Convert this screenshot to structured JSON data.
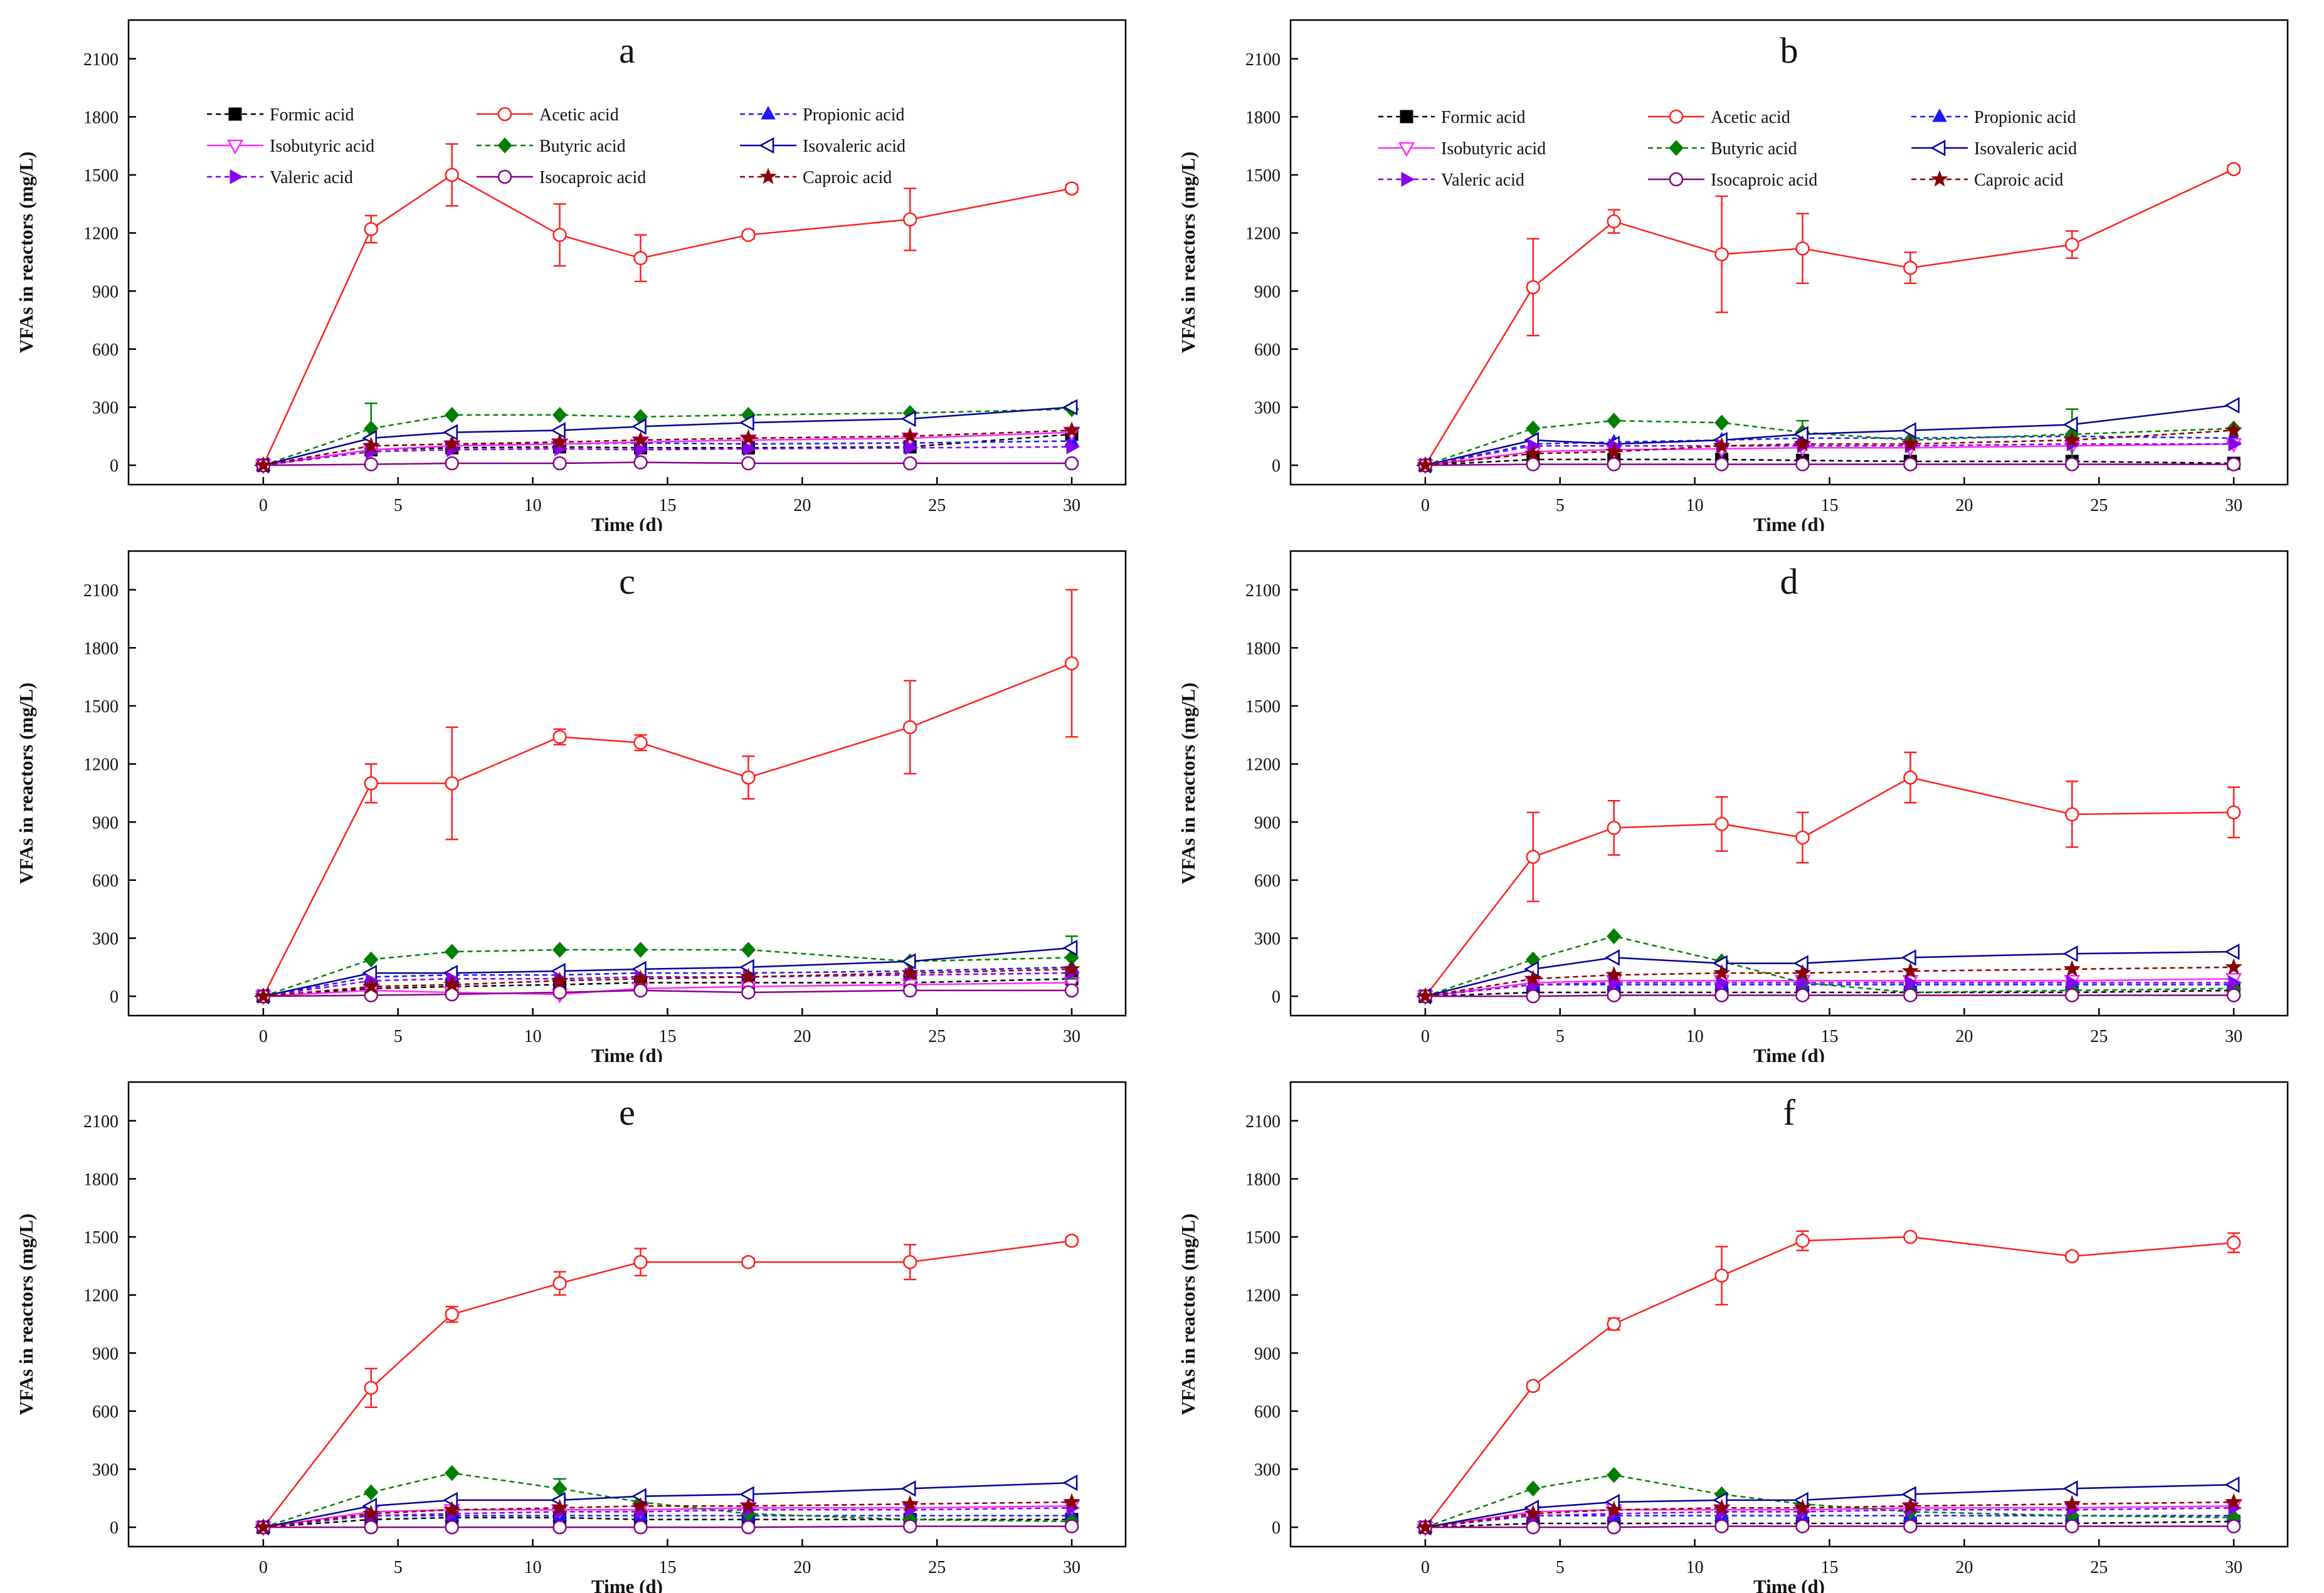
{
  "figure": {
    "panel_count": 6
  },
  "legend": [
    {
      "name": "Formic acid",
      "color": "#000000",
      "marker": "square-filled",
      "dash": true
    },
    {
      "name": "Acetic acid",
      "color": "#ff2020",
      "marker": "circle-open",
      "dash": false
    },
    {
      "name": "Propionic acid",
      "color": "#1a1aff",
      "marker": "triangle-up-filled",
      "dash": true
    },
    {
      "name": "Isobutyric acid",
      "color": "#ff2bff",
      "marker": "triangle-down-open",
      "dash": false
    },
    {
      "name": "Butyric acid",
      "color": "#008000",
      "marker": "diamond-filled",
      "dash": true
    },
    {
      "name": "Isovaleric acid",
      "color": "#000099",
      "marker": "triangle-left-open",
      "dash": false
    },
    {
      "name": "Valeric acid",
      "color": "#8800ee",
      "marker": "triangle-right-filled",
      "dash": true
    },
    {
      "name": "Isocaproic acid",
      "color": "#880088",
      "marker": "circle-open",
      "dash": false
    },
    {
      "name": "Caproic acid",
      "color": "#880000",
      "marker": "star-filled",
      "dash": true
    }
  ],
  "chart_data": [
    {
      "type": "line",
      "label": "a",
      "xlabel": "Time (d)",
      "ylabel": "VFAs in reactors (mg/L)",
      "x": [
        0,
        4,
        7,
        11,
        14,
        18,
        24,
        30
      ],
      "xlim": [
        -5,
        32
      ],
      "ylim": [
        -100,
        2300
      ],
      "xticks": [
        0,
        5,
        10,
        15,
        20,
        25,
        30
      ],
      "yticks": [
        0,
        300,
        600,
        900,
        1200,
        1500,
        1800,
        2100
      ],
      "series": [
        {
          "name": "Formic acid",
          "values": [
            0,
            80,
            90,
            95,
            90,
            90,
            95,
            160
          ]
        },
        {
          "name": "Acetic acid",
          "values": [
            0,
            1220,
            1500,
            1190,
            1070,
            1190,
            1270,
            1430
          ],
          "errors": [
            0,
            70,
            160,
            160,
            120,
            20,
            160,
            20
          ]
        },
        {
          "name": "Propionic acid",
          "values": [
            0,
            100,
            110,
            110,
            115,
            110,
            115,
            125
          ]
        },
        {
          "name": "Isobutyric acid",
          "values": [
            0,
            80,
            100,
            110,
            120,
            130,
            140,
            170
          ]
        },
        {
          "name": "Butyric acid",
          "values": [
            0,
            190,
            260,
            260,
            250,
            260,
            270,
            290
          ],
          "errors": [
            0,
            130,
            0,
            0,
            0,
            0,
            0,
            0
          ]
        },
        {
          "name": "Isovaleric acid",
          "values": [
            0,
            140,
            170,
            180,
            200,
            220,
            240,
            300
          ]
        },
        {
          "name": "Valeric acid",
          "values": [
            0,
            70,
            80,
            85,
            80,
            85,
            90,
            95
          ]
        },
        {
          "name": "Isocaproic acid",
          "values": [
            0,
            5,
            10,
            10,
            15,
            10,
            10,
            10
          ]
        },
        {
          "name": "Caproic acid",
          "values": [
            0,
            100,
            110,
            120,
            130,
            140,
            150,
            180
          ]
        }
      ]
    },
    {
      "type": "line",
      "label": "b",
      "xlabel": "Time (d)",
      "ylabel": "VFAs in reactors (mg/L)",
      "x": [
        0,
        4,
        7,
        11,
        14,
        18,
        24,
        30
      ],
      "xlim": [
        -5,
        32
      ],
      "ylim": [
        -100,
        2300
      ],
      "xticks": [
        0,
        5,
        10,
        15,
        20,
        25,
        30
      ],
      "yticks": [
        0,
        300,
        600,
        900,
        1200,
        1500,
        1800,
        2100
      ],
      "series": [
        {
          "name": "Formic acid",
          "values": [
            0,
            30,
            30,
            30,
            25,
            20,
            20,
            10
          ]
        },
        {
          "name": "Acetic acid",
          "values": [
            0,
            920,
            1260,
            1090,
            1120,
            1020,
            1140,
            1530
          ],
          "errors": [
            0,
            250,
            60,
            300,
            180,
            80,
            70,
            20
          ]
        },
        {
          "name": "Propionic acid",
          "values": [
            0,
            110,
            120,
            130,
            140,
            140,
            150,
            140
          ]
        },
        {
          "name": "Isobutyric acid",
          "values": [
            0,
            70,
            80,
            85,
            90,
            90,
            100,
            110
          ]
        },
        {
          "name": "Butyric acid",
          "values": [
            0,
            190,
            230,
            220,
            170,
            130,
            160,
            190
          ],
          "errors": [
            0,
            0,
            0,
            0,
            60,
            0,
            130,
            0
          ]
        },
        {
          "name": "Isovaleric acid",
          "values": [
            0,
            130,
            110,
            130,
            160,
            180,
            210,
            310
          ]
        },
        {
          "name": "Valeric acid",
          "values": [
            0,
            100,
            100,
            100,
            100,
            100,
            110,
            110
          ]
        },
        {
          "name": "Isocaproic acid",
          "values": [
            0,
            5,
            5,
            5,
            5,
            5,
            5,
            5
          ]
        },
        {
          "name": "Caproic acid",
          "values": [
            0,
            60,
            70,
            100,
            110,
            110,
            130,
            180
          ]
        }
      ]
    },
    {
      "type": "line",
      "label": "c",
      "xlabel": "Time (d)",
      "ylabel": "VFAs in reactors (mg/L)",
      "x": [
        0,
        4,
        7,
        11,
        14,
        18,
        24,
        30
      ],
      "xlim": [
        -5,
        32
      ],
      "ylim": [
        -100,
        2300
      ],
      "xticks": [
        0,
        5,
        10,
        15,
        20,
        25,
        30
      ],
      "yticks": [
        0,
        300,
        600,
        900,
        1200,
        1500,
        1800,
        2100
      ],
      "series": [
        {
          "name": "Formic acid",
          "values": [
            0,
            40,
            50,
            60,
            70,
            70,
            70,
            90
          ]
        },
        {
          "name": "Acetic acid",
          "values": [
            0,
            1100,
            1100,
            1340,
            1310,
            1130,
            1390,
            1720
          ],
          "errors": [
            0,
            100,
            290,
            40,
            40,
            110,
            240,
            380
          ]
        },
        {
          "name": "Propionic acid",
          "values": [
            0,
            100,
            110,
            110,
            120,
            120,
            130,
            150
          ]
        },
        {
          "name": "Isobutyric acid",
          "values": [
            0,
            30,
            20,
            10,
            40,
            50,
            60,
            70
          ]
        },
        {
          "name": "Butyric acid",
          "values": [
            0,
            190,
            230,
            240,
            240,
            240,
            180,
            200
          ],
          "errors": [
            0,
            0,
            0,
            0,
            0,
            0,
            0,
            110
          ]
        },
        {
          "name": "Isovaleric acid",
          "values": [
            0,
            120,
            120,
            130,
            140,
            150,
            180,
            250
          ]
        },
        {
          "name": "Valeric acid",
          "values": [
            0,
            80,
            90,
            90,
            100,
            100,
            110,
            120
          ]
        },
        {
          "name": "Isocaproic acid",
          "values": [
            0,
            5,
            10,
            20,
            30,
            20,
            30,
            30
          ]
        },
        {
          "name": "Caproic acid",
          "values": [
            0,
            50,
            60,
            80,
            90,
            100,
            120,
            140
          ]
        }
      ]
    },
    {
      "type": "line",
      "label": "d",
      "xlabel": "Time (d)",
      "ylabel": "VFAs in reactors (mg/L)",
      "x": [
        0,
        4,
        7,
        11,
        14,
        18,
        24,
        30
      ],
      "xlim": [
        -5,
        32
      ],
      "ylim": [
        -100,
        2300
      ],
      "xticks": [
        0,
        5,
        10,
        15,
        20,
        25,
        30
      ],
      "yticks": [
        0,
        300,
        600,
        900,
        1200,
        1500,
        1800,
        2100
      ],
      "series": [
        {
          "name": "Formic acid",
          "values": [
            0,
            20,
            20,
            20,
            20,
            20,
            20,
            30
          ]
        },
        {
          "name": "Acetic acid",
          "values": [
            0,
            720,
            870,
            890,
            820,
            1130,
            940,
            950
          ],
          "errors": [
            0,
            230,
            140,
            140,
            130,
            130,
            170,
            130
          ]
        },
        {
          "name": "Propionic acid",
          "values": [
            0,
            60,
            60,
            60,
            60,
            60,
            60,
            60
          ]
        },
        {
          "name": "Isobutyric acid",
          "values": [
            0,
            70,
            80,
            80,
            80,
            80,
            80,
            90
          ]
        },
        {
          "name": "Butyric acid",
          "values": [
            0,
            190,
            310,
            180,
            70,
            20,
            30,
            40
          ]
        },
        {
          "name": "Isovaleric acid",
          "values": [
            0,
            140,
            200,
            170,
            170,
            200,
            220,
            230
          ]
        },
        {
          "name": "Valeric acid",
          "values": [
            0,
            60,
            70,
            70,
            70,
            70,
            70,
            70
          ]
        },
        {
          "name": "Isocaproic acid",
          "values": [
            0,
            0,
            5,
            5,
            5,
            5,
            5,
            5
          ]
        },
        {
          "name": "Caproic acid",
          "values": [
            0,
            90,
            110,
            120,
            120,
            130,
            140,
            150
          ]
        }
      ]
    },
    {
      "type": "line",
      "label": "e",
      "xlabel": "Time (d)",
      "ylabel": "VFAs in reactors (mg/L)",
      "x": [
        0,
        4,
        7,
        11,
        14,
        18,
        24,
        30
      ],
      "xlim": [
        -5,
        32
      ],
      "ylim": [
        -100,
        2300
      ],
      "xticks": [
        0,
        5,
        10,
        15,
        20,
        25,
        30
      ],
      "yticks": [
        0,
        300,
        600,
        900,
        1200,
        1500,
        1800,
        2100
      ],
      "series": [
        {
          "name": "Formic acid",
          "values": [
            0,
            40,
            50,
            50,
            40,
            40,
            40,
            40
          ]
        },
        {
          "name": "Acetic acid",
          "values": [
            0,
            720,
            1100,
            1260,
            1370,
            1370,
            1370,
            1480
          ],
          "errors": [
            0,
            100,
            40,
            60,
            70,
            20,
            90,
            20
          ]
        },
        {
          "name": "Propionic acid",
          "values": [
            0,
            60,
            60,
            60,
            60,
            60,
            60,
            60
          ]
        },
        {
          "name": "Isobutyric acid",
          "values": [
            0,
            80,
            90,
            90,
            90,
            100,
            100,
            110
          ]
        },
        {
          "name": "Butyric acid",
          "values": [
            0,
            180,
            280,
            200,
            130,
            70,
            40,
            30
          ],
          "errors": [
            0,
            0,
            0,
            50,
            0,
            0,
            0,
            0
          ]
        },
        {
          "name": "Isovaleric acid",
          "values": [
            0,
            110,
            140,
            140,
            160,
            170,
            200,
            230
          ]
        },
        {
          "name": "Valeric acid",
          "values": [
            0,
            60,
            70,
            80,
            80,
            90,
            90,
            100
          ]
        },
        {
          "name": "Isocaproic acid",
          "values": [
            0,
            0,
            0,
            0,
            0,
            0,
            5,
            5
          ]
        },
        {
          "name": "Caproic acid",
          "values": [
            0,
            70,
            90,
            100,
            110,
            110,
            120,
            130
          ]
        }
      ]
    },
    {
      "type": "line",
      "label": "f",
      "xlabel": "Time (d)",
      "ylabel": "VFAs in reactors (mg/L)",
      "x": [
        0,
        4,
        7,
        11,
        14,
        18,
        24,
        30
      ],
      "xlim": [
        -5,
        32
      ],
      "ylim": [
        -100,
        2300
      ],
      "xticks": [
        0,
        5,
        10,
        15,
        20,
        25,
        30
      ],
      "yticks": [
        0,
        300,
        600,
        900,
        1200,
        1500,
        1800,
        2100
      ],
      "series": [
        {
          "name": "Formic acid",
          "values": [
            0,
            20,
            20,
            20,
            20,
            20,
            20,
            30
          ]
        },
        {
          "name": "Acetic acid",
          "values": [
            0,
            730,
            1050,
            1300,
            1480,
            1500,
            1400,
            1470
          ],
          "errors": [
            0,
            20,
            30,
            150,
            50,
            10,
            20,
            50
          ]
        },
        {
          "name": "Propionic acid",
          "values": [
            0,
            60,
            60,
            60,
            60,
            60,
            60,
            60
          ]
        },
        {
          "name": "Isobutyric acid",
          "values": [
            0,
            80,
            90,
            90,
            90,
            100,
            100,
            110
          ]
        },
        {
          "name": "Butyric acid",
          "values": [
            0,
            200,
            270,
            170,
            120,
            80,
            60,
            50
          ]
        },
        {
          "name": "Isovaleric acid",
          "values": [
            0,
            100,
            130,
            140,
            140,
            170,
            200,
            220
          ]
        },
        {
          "name": "Valeric acid",
          "values": [
            0,
            60,
            70,
            80,
            80,
            90,
            90,
            100
          ]
        },
        {
          "name": "Isocaproic acid",
          "values": [
            0,
            0,
            0,
            5,
            5,
            5,
            5,
            5
          ]
        },
        {
          "name": "Caproic acid",
          "values": [
            0,
            70,
            90,
            100,
            100,
            110,
            120,
            130
          ]
        }
      ]
    }
  ]
}
